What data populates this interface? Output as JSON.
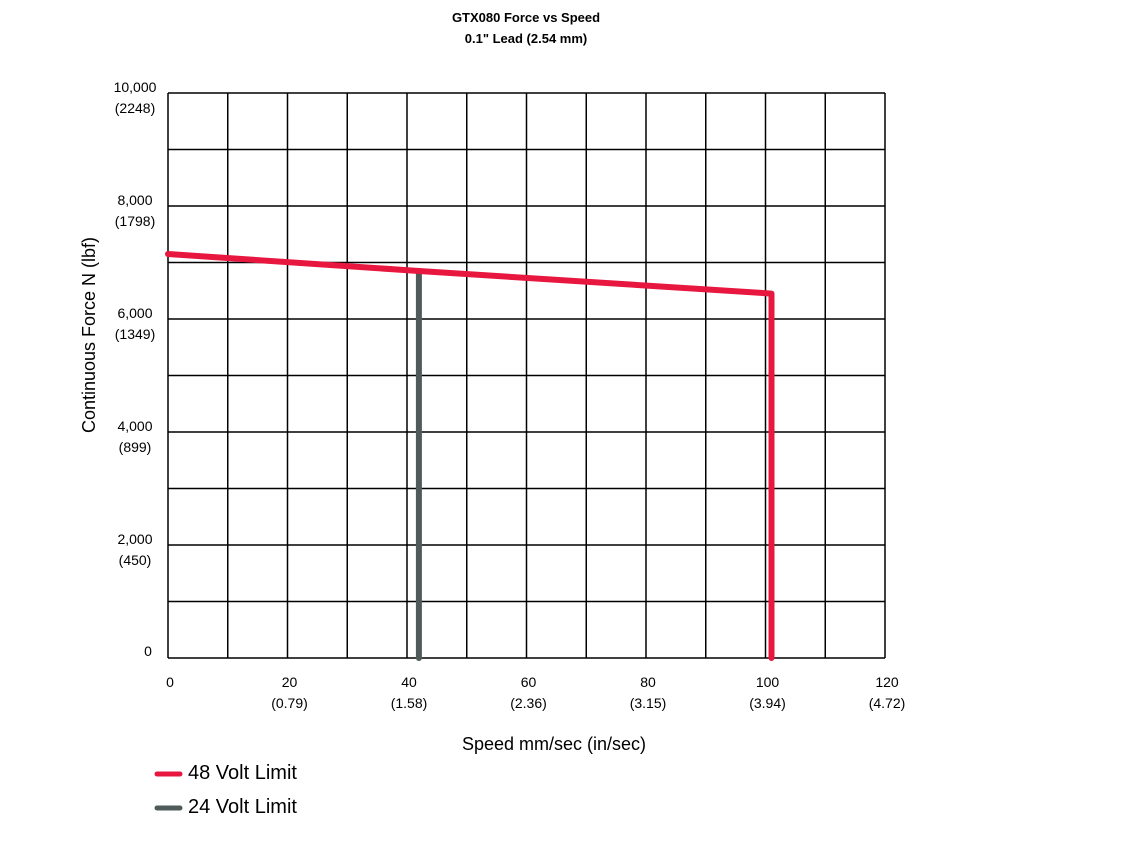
{
  "chart_data": {
    "type": "line",
    "title": "GTX080 Force vs Speed",
    "subtitle": "0.1\" Lead (2.54 mm)",
    "xlabel": "Speed mm/sec (in/sec)",
    "ylabel": "Continuous Force N (lbf)",
    "xlim": [
      0,
      120
    ],
    "ylim": [
      0,
      10000
    ],
    "grid": true,
    "x_ticks": [
      {
        "value": 0,
        "label": "0",
        "sub": ""
      },
      {
        "value": 20,
        "label": "20",
        "sub": "(0.79)"
      },
      {
        "value": 40,
        "label": "40",
        "sub": "(1.58)"
      },
      {
        "value": 60,
        "label": "60",
        "sub": "(2.36)"
      },
      {
        "value": 80,
        "label": "80",
        "sub": "(3.15)"
      },
      {
        "value": 100,
        "label": "100",
        "sub": "(3.94)"
      },
      {
        "value": 120,
        "label": "120",
        "sub": "(4.72)"
      }
    ],
    "y_ticks": [
      {
        "value": 0,
        "label": "0",
        "sub": ""
      },
      {
        "value": 2000,
        "label": "2,000",
        "sub": "(450)"
      },
      {
        "value": 4000,
        "label": "4,000",
        "sub": "(899)"
      },
      {
        "value": 6000,
        "label": "6,000",
        "sub": "(1349)"
      },
      {
        "value": 8000,
        "label": "8,000",
        "sub": "(1798)"
      },
      {
        "value": 10000,
        "label": "10,000",
        "sub": "(2248)"
      }
    ],
    "series": [
      {
        "name": "48 Volt Limit",
        "color": "#e8173f",
        "points": [
          [
            0,
            7150
          ],
          [
            42,
            6850
          ],
          [
            101,
            6450
          ],
          [
            101,
            0
          ]
        ]
      },
      {
        "name": "24 Volt Limit",
        "color": "#4f5b5a",
        "points": [
          [
            42,
            6850
          ],
          [
            42,
            0
          ]
        ]
      }
    ],
    "legend_position": "bottom-left"
  }
}
